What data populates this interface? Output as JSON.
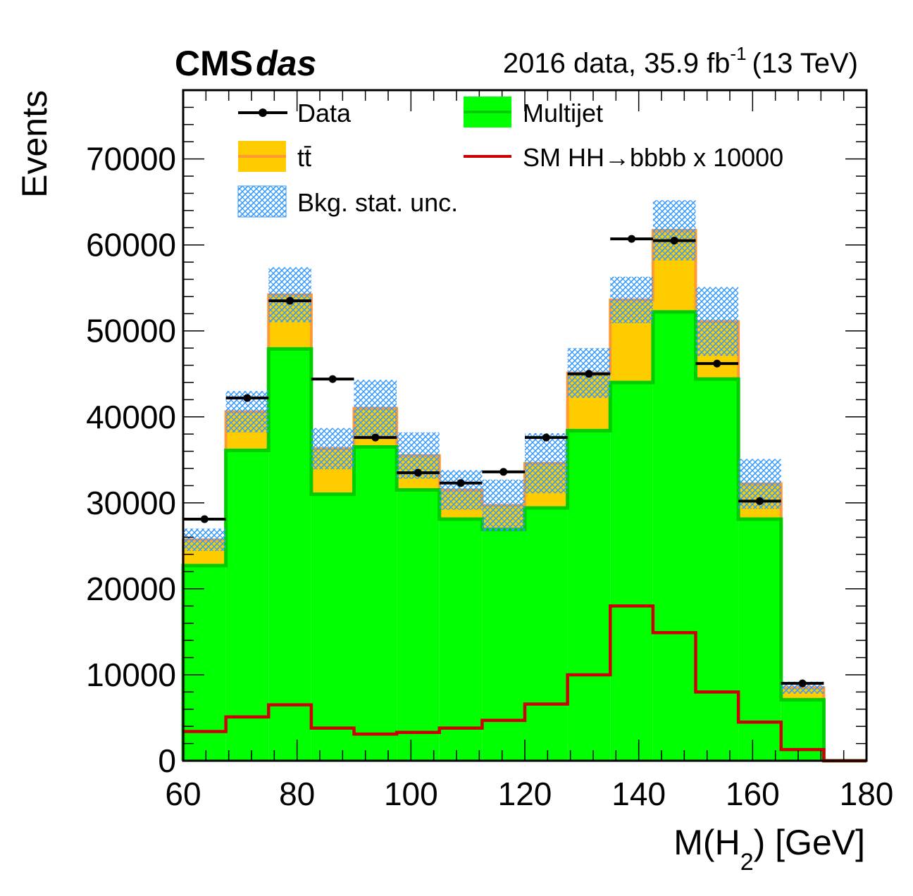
{
  "header": {
    "experiment": "CMS",
    "experiment_suffix": "das",
    "lumi_text": "2016 data, 35.9 fb",
    "lumi_exponent": "-1",
    "energy_text": "(13 TeV)"
  },
  "colors": {
    "multijet": "#00ff00",
    "multijet_line": "#00cc00",
    "ttbar": "#ffcc00",
    "ttbar_line": "#ff9933",
    "signal": "#cc0000",
    "data": "#000000",
    "unc_pattern": "#3399ff"
  },
  "chart_data": {
    "type": "bar",
    "xlabel": "M(H",
    "xlabel_sub": "2",
    "xlabel_tail": ") [GeV]",
    "ylabel": "Events",
    "xlim": [
      60,
      180
    ],
    "ylim": [
      0,
      78000
    ],
    "x_ticks": [
      60,
      80,
      100,
      120,
      140,
      160,
      180
    ],
    "y_ticks": [
      0,
      10000,
      20000,
      30000,
      40000,
      50000,
      60000,
      70000
    ],
    "bin_edges": [
      60,
      67.5,
      75,
      82.5,
      90,
      97.5,
      105,
      112.5,
      120,
      127.5,
      135,
      142.5,
      150,
      157.5,
      165,
      172.5,
      180
    ],
    "series": [
      {
        "name": "Multijet",
        "kind": "stack",
        "values": [
          22700,
          36100,
          47900,
          31000,
          36500,
          31500,
          28100,
          26900,
          29400,
          38400,
          44000,
          52200,
          44400,
          28100,
          7100,
          0
        ]
      },
      {
        "name": "tt̄",
        "kind": "stack",
        "values": [
          3000,
          4500,
          6300,
          5300,
          4500,
          4000,
          3400,
          2800,
          5200,
          6700,
          9600,
          9500,
          6700,
          4100,
          1400,
          0
        ]
      },
      {
        "name": "Bkg. stat. unc.",
        "kind": "uncertainty",
        "values": [
          1300,
          2400,
          3200,
          2400,
          3300,
          2700,
          2300,
          3000,
          3500,
          2900,
          2700,
          3500,
          4000,
          2900,
          700,
          0
        ]
      },
      {
        "name": "Data",
        "kind": "points",
        "values": [
          28100,
          42200,
          53500,
          44400,
          37600,
          33500,
          32300,
          33600,
          37600,
          45000,
          60700,
          60500,
          46200,
          30200,
          9000,
          null
        ]
      },
      {
        "name": "SM HH→bbbb x 10000",
        "kind": "line",
        "values": [
          3400,
          5100,
          6500,
          3800,
          3100,
          3300,
          3800,
          4700,
          6600,
          10000,
          18000,
          14900,
          8000,
          4500,
          1300,
          0
        ]
      }
    ],
    "legend": {
      "placement": "top",
      "entries": [
        "Data",
        "Multijet",
        "tt̄",
        "SM HH→bbbb x 10000",
        "Bkg. stat. unc."
      ]
    }
  }
}
